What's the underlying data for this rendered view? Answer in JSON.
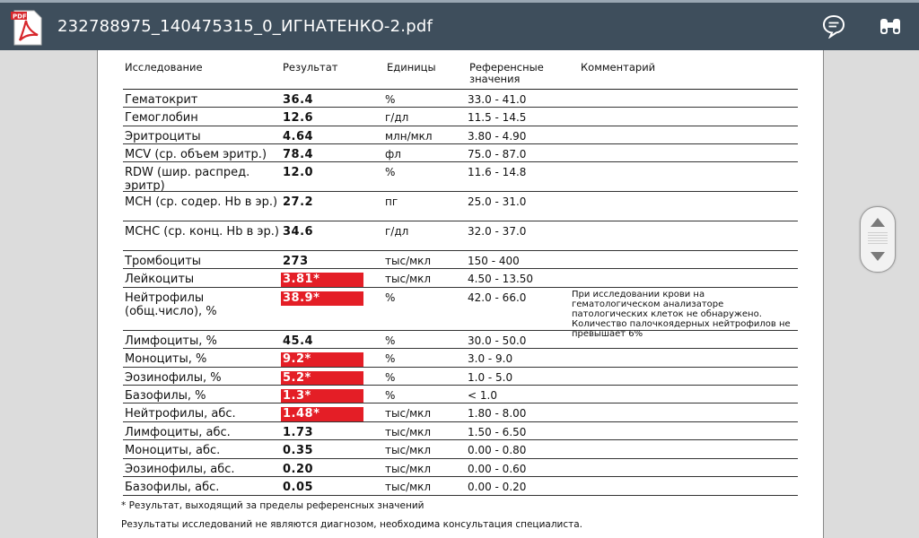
{
  "app": {
    "title": "232788975_140475315_0_ИГНАТЕНКО-2.pdf",
    "icon_label": "PDF",
    "accent": "#d7262b",
    "bar_color": "#3e4e5c"
  },
  "toolbar": {
    "comment_icon": "comment-icon",
    "find_icon": "binoculars-icon"
  },
  "table": {
    "headers": {
      "name": "Исследование",
      "result": "Результат",
      "units": "Единицы",
      "reference": "Референсные значения",
      "comment": "Комментарий"
    },
    "abnormal_color": "#e41e26",
    "rows": [
      {
        "name": "Гематокрит",
        "result": "36.4",
        "units": "%",
        "reference": "33.0 - 41.0",
        "comment": "",
        "abnormal": false
      },
      {
        "name": "Гемоглобин",
        "result": "12.6",
        "units": "г/дл",
        "reference": "11.5 - 14.5",
        "comment": "",
        "abnormal": false
      },
      {
        "name": "Эритроциты",
        "result": "4.64",
        "units": "млн/мкл",
        "reference": "3.80 - 4.90",
        "comment": "",
        "abnormal": false
      },
      {
        "name": "MCV (ср. объем эритр.)",
        "result": "78.4",
        "units": "фл",
        "reference": "75.0 - 87.0",
        "comment": "",
        "abnormal": false
      },
      {
        "name": "RDW (шир. распред. эритр)",
        "result": "12.0",
        "units": "%",
        "reference": "11.6 - 14.8",
        "comment": "",
        "abnormal": false
      },
      {
        "name": "MCH (ср. содер. Hb в эр.)",
        "result": "27.2",
        "units": "пг",
        "reference": "25.0 - 31.0",
        "comment": "",
        "abnormal": false
      },
      {
        "name": "MCHC (ср. конц. Hb в эр.)",
        "result": "34.6",
        "units": "г/дл",
        "reference": "32.0 - 37.0",
        "comment": "",
        "abnormal": false
      },
      {
        "name": "Тромбоциты",
        "result": "273",
        "units": "тыс/мкл",
        "reference": "150 - 400",
        "comment": "",
        "abnormal": false
      },
      {
        "name": "Лейкоциты",
        "result": "3.81*",
        "units": "тыс/мкл",
        "reference": "4.50 - 13.50",
        "comment": "",
        "abnormal": true
      },
      {
        "name": "Нейтрофилы (общ.число), %",
        "result": "38.9*",
        "units": "%",
        "reference": "42.0 - 66.0",
        "comment": "При исследовании крови на гематологическом анализаторе патологических клеток не обнаружено. Количество палочкоядерных нейтрофилов не превышает 6%",
        "abnormal": true
      },
      {
        "name": "Лимфоциты, %",
        "result": "45.4",
        "units": "%",
        "reference": "30.0 - 50.0",
        "comment": "",
        "abnormal": false
      },
      {
        "name": "Моноциты, %",
        "result": "9.2*",
        "units": "%",
        "reference": "3.0 - 9.0",
        "comment": "",
        "abnormal": true
      },
      {
        "name": "Эозинофилы, %",
        "result": "5.2*",
        "units": "%",
        "reference": "1.0 - 5.0",
        "comment": "",
        "abnormal": true
      },
      {
        "name": "Базофилы, %",
        "result": "1.3*",
        "units": "%",
        "reference": "< 1.0",
        "comment": "",
        "abnormal": true
      },
      {
        "name": "Нейтрофилы, абс.",
        "result": "1.48*",
        "units": "тыс/мкл",
        "reference": "1.80 - 8.00",
        "comment": "",
        "abnormal": true
      },
      {
        "name": "Лимфоциты, абс.",
        "result": "1.73",
        "units": "тыс/мкл",
        "reference": "1.50 - 6.50",
        "comment": "",
        "abnormal": false
      },
      {
        "name": "Моноциты, абс.",
        "result": "0.35",
        "units": "тыс/мкл",
        "reference": "0.00 - 0.80",
        "comment": "",
        "abnormal": false
      },
      {
        "name": "Эозинофилы, абс.",
        "result": "0.20",
        "units": "тыс/мкл",
        "reference": "0.00 - 0.60",
        "comment": "",
        "abnormal": false
      },
      {
        "name": "Базофилы, абс.",
        "result": "0.05",
        "units": "тыс/мкл",
        "reference": "0.00 - 0.20",
        "comment": "",
        "abnormal": false
      }
    ]
  },
  "footnotes": {
    "asterisk": "* Результат, выходящий за пределы референсных значений",
    "disclaimer": "Результаты исследований не являются диагнозом, необходима консультация специалиста."
  },
  "scroller": {
    "up_icon": "arrow-up-icon",
    "down_icon": "arrow-down-icon"
  }
}
